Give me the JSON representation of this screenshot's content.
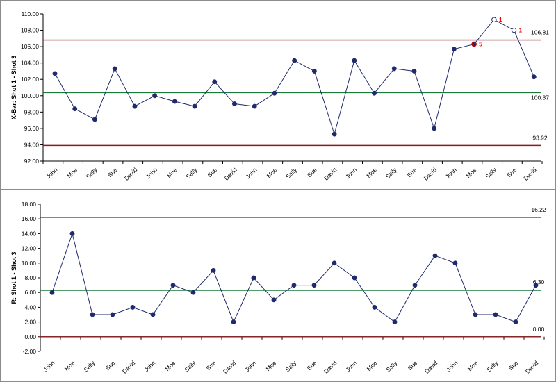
{
  "chart_data": [
    {
      "type": "line",
      "ylabel": "X-Bar: Shot 1 - Shot 3",
      "ylim": [
        92,
        110
      ],
      "yticks": [
        "92.00",
        "94.00",
        "96.00",
        "98.00",
        "100.00",
        "102.00",
        "104.00",
        "106.00",
        "108.00",
        "110.00"
      ],
      "categories": [
        "John",
        "Moe",
        "Sally",
        "Sue",
        "David",
        "John",
        "Moe",
        "Sally",
        "Sue",
        "David",
        "John",
        "Moe",
        "Sally",
        "Sue",
        "David",
        "John",
        "Moe",
        "Sally",
        "Sue",
        "David",
        "John",
        "Moe",
        "Sally",
        "Sue",
        "David"
      ],
      "series": [
        {
          "values": [
            102.7,
            98.4,
            97.1,
            103.3,
            98.7,
            100.0,
            99.3,
            98.7,
            101.7,
            99.0,
            98.7,
            100.3,
            104.3,
            103.0,
            95.3,
            104.3,
            100.3,
            103.3,
            103.0,
            96.0,
            105.7,
            106.3,
            109.3,
            108.0,
            102.3
          ],
          "color": "#1f2a6b"
        }
      ],
      "limits": {
        "ucl": {
          "value": 106.81,
          "label": "106.81",
          "color": "#8b1a1a"
        },
        "center": {
          "value": 100.37,
          "label": "100.37",
          "color": "#1a7a3a"
        },
        "lcl": {
          "value": 93.92,
          "label": "93.92",
          "color": "#8b1a1a"
        }
      },
      "flagged_points": [
        {
          "index": 21,
          "rule": "5",
          "style": "filled-red"
        },
        {
          "index": 22,
          "rule": "1",
          "style": "open"
        },
        {
          "index": 23,
          "rule": "1",
          "style": "open"
        }
      ],
      "grid": false,
      "legend": "none"
    },
    {
      "type": "line",
      "ylabel": "R: Shot 1 - Shot 3",
      "ylim": [
        -2,
        18
      ],
      "yticks": [
        "-2.00",
        "0.00",
        "2.00",
        "4.00",
        "6.00",
        "8.00",
        "10.00",
        "12.00",
        "14.00",
        "16.00",
        "18.00"
      ],
      "categories": [
        "John",
        "Moe",
        "Sally",
        "Sue",
        "David",
        "John",
        "Moe",
        "Sally",
        "Sue",
        "David",
        "John",
        "Moe",
        "Sally",
        "Sue",
        "David",
        "John",
        "Moe",
        "Sally",
        "Sue",
        "David",
        "John",
        "Moe",
        "Sally",
        "Sue",
        "David"
      ],
      "series": [
        {
          "values": [
            6,
            14,
            3,
            3,
            4,
            3,
            7,
            6,
            9,
            2,
            8,
            5,
            7,
            7,
            10,
            8,
            4,
            2,
            7,
            11,
            10,
            3,
            3,
            2,
            7
          ],
          "color": "#1f2a6b"
        }
      ],
      "limits": {
        "ucl": {
          "value": 16.22,
          "label": "16.22",
          "color": "#8b1a1a"
        },
        "center": {
          "value": 6.3,
          "label": "6.30",
          "color": "#1a7a3a"
        },
        "lcl": {
          "value": 0.0,
          "label": "0.00",
          "color": "#8b1a1a"
        }
      },
      "flagged_points": [],
      "grid": false,
      "legend": "none"
    }
  ]
}
